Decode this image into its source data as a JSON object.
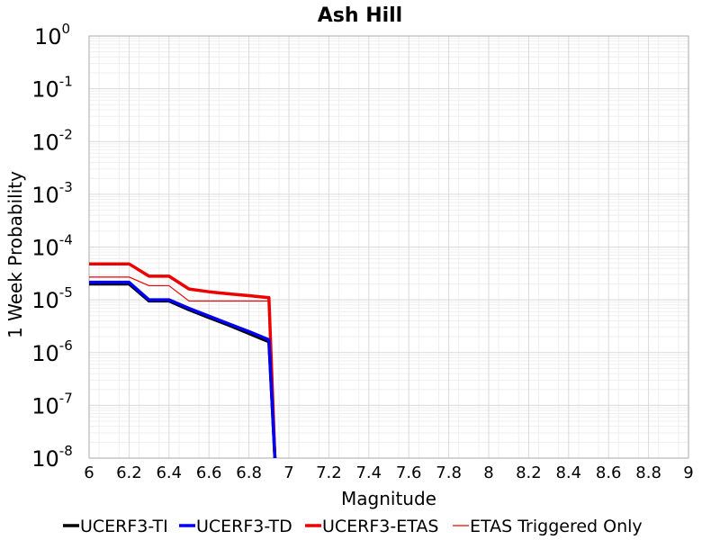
{
  "chart_data": {
    "type": "line",
    "title": "Ash Hill",
    "xlabel": "Magnitude",
    "ylabel": "1 Week Probability",
    "xlim": [
      6,
      9
    ],
    "ylim": [
      1e-08,
      1
    ],
    "yscale": "log",
    "grid": true,
    "legend_position": "bottom",
    "x_ticks": [
      "6",
      "6.2",
      "6.4",
      "6.6",
      "6.8",
      "7",
      "7.2",
      "7.4",
      "7.6",
      "7.8",
      "8",
      "8.2",
      "8.4",
      "8.6",
      "8.8",
      "9"
    ],
    "y_ticks": [
      {
        "base": "10",
        "exp": "0",
        "value": 1
      },
      {
        "base": "10",
        "exp": "-1",
        "value": 0.1
      },
      {
        "base": "10",
        "exp": "-2",
        "value": 0.01
      },
      {
        "base": "10",
        "exp": "-3",
        "value": 0.001
      },
      {
        "base": "10",
        "exp": "-4",
        "value": 0.0001
      },
      {
        "base": "10",
        "exp": "-5",
        "value": 1e-05
      },
      {
        "base": "10",
        "exp": "-6",
        "value": 1e-06
      },
      {
        "base": "10",
        "exp": "-7",
        "value": 1e-07
      },
      {
        "base": "10",
        "exp": "-8",
        "value": 1e-08
      }
    ],
    "series": [
      {
        "name": "UCERF3-TI",
        "color": "#000000",
        "style": "thick",
        "x": [
          6.0,
          6.1,
          6.2,
          6.3,
          6.4,
          6.5,
          6.6,
          6.7,
          6.8,
          6.9,
          6.93
        ],
        "y": [
          2e-05,
          2e-05,
          2e-05,
          9.5e-06,
          9.5e-06,
          6.5e-06,
          4.6e-06,
          3.3e-06,
          2.3e-06,
          1.6e-06,
          1e-08
        ]
      },
      {
        "name": "UCERF3-TD",
        "color": "#0000ee",
        "style": "thick",
        "x": [
          6.0,
          6.1,
          6.2,
          6.3,
          6.4,
          6.5,
          6.6,
          6.7,
          6.8,
          6.9,
          6.93
        ],
        "y": [
          2.15e-05,
          2.15e-05,
          2.15e-05,
          1e-05,
          1e-05,
          6.9e-06,
          4.9e-06,
          3.5e-06,
          2.5e-06,
          1.75e-06,
          1e-08
        ]
      },
      {
        "name": "UCERF3-ETAS",
        "color": "#ee0000",
        "style": "thick",
        "x": [
          6.0,
          6.1,
          6.2,
          6.3,
          6.4,
          6.5,
          6.6,
          6.7,
          6.8,
          6.9,
          6.93
        ],
        "y": [
          4.8e-05,
          4.8e-05,
          4.8e-05,
          2.8e-05,
          2.8e-05,
          1.6e-05,
          1.42e-05,
          1.3e-05,
          1.2e-05,
          1.1e-05,
          1e-08
        ]
      },
      {
        "name": "ETAS Triggered Only",
        "color": "#ee0000",
        "style": "thin",
        "x": [
          6.0,
          6.1,
          6.2,
          6.3,
          6.4,
          6.5,
          6.6,
          6.7,
          6.8,
          6.9,
          6.93
        ],
        "y": [
          2.7e-05,
          2.7e-05,
          2.7e-05,
          1.85e-05,
          1.85e-05,
          9.5e-06,
          9.5e-06,
          9.5e-06,
          9.5e-06,
          9.5e-06,
          1e-08
        ]
      }
    ]
  }
}
